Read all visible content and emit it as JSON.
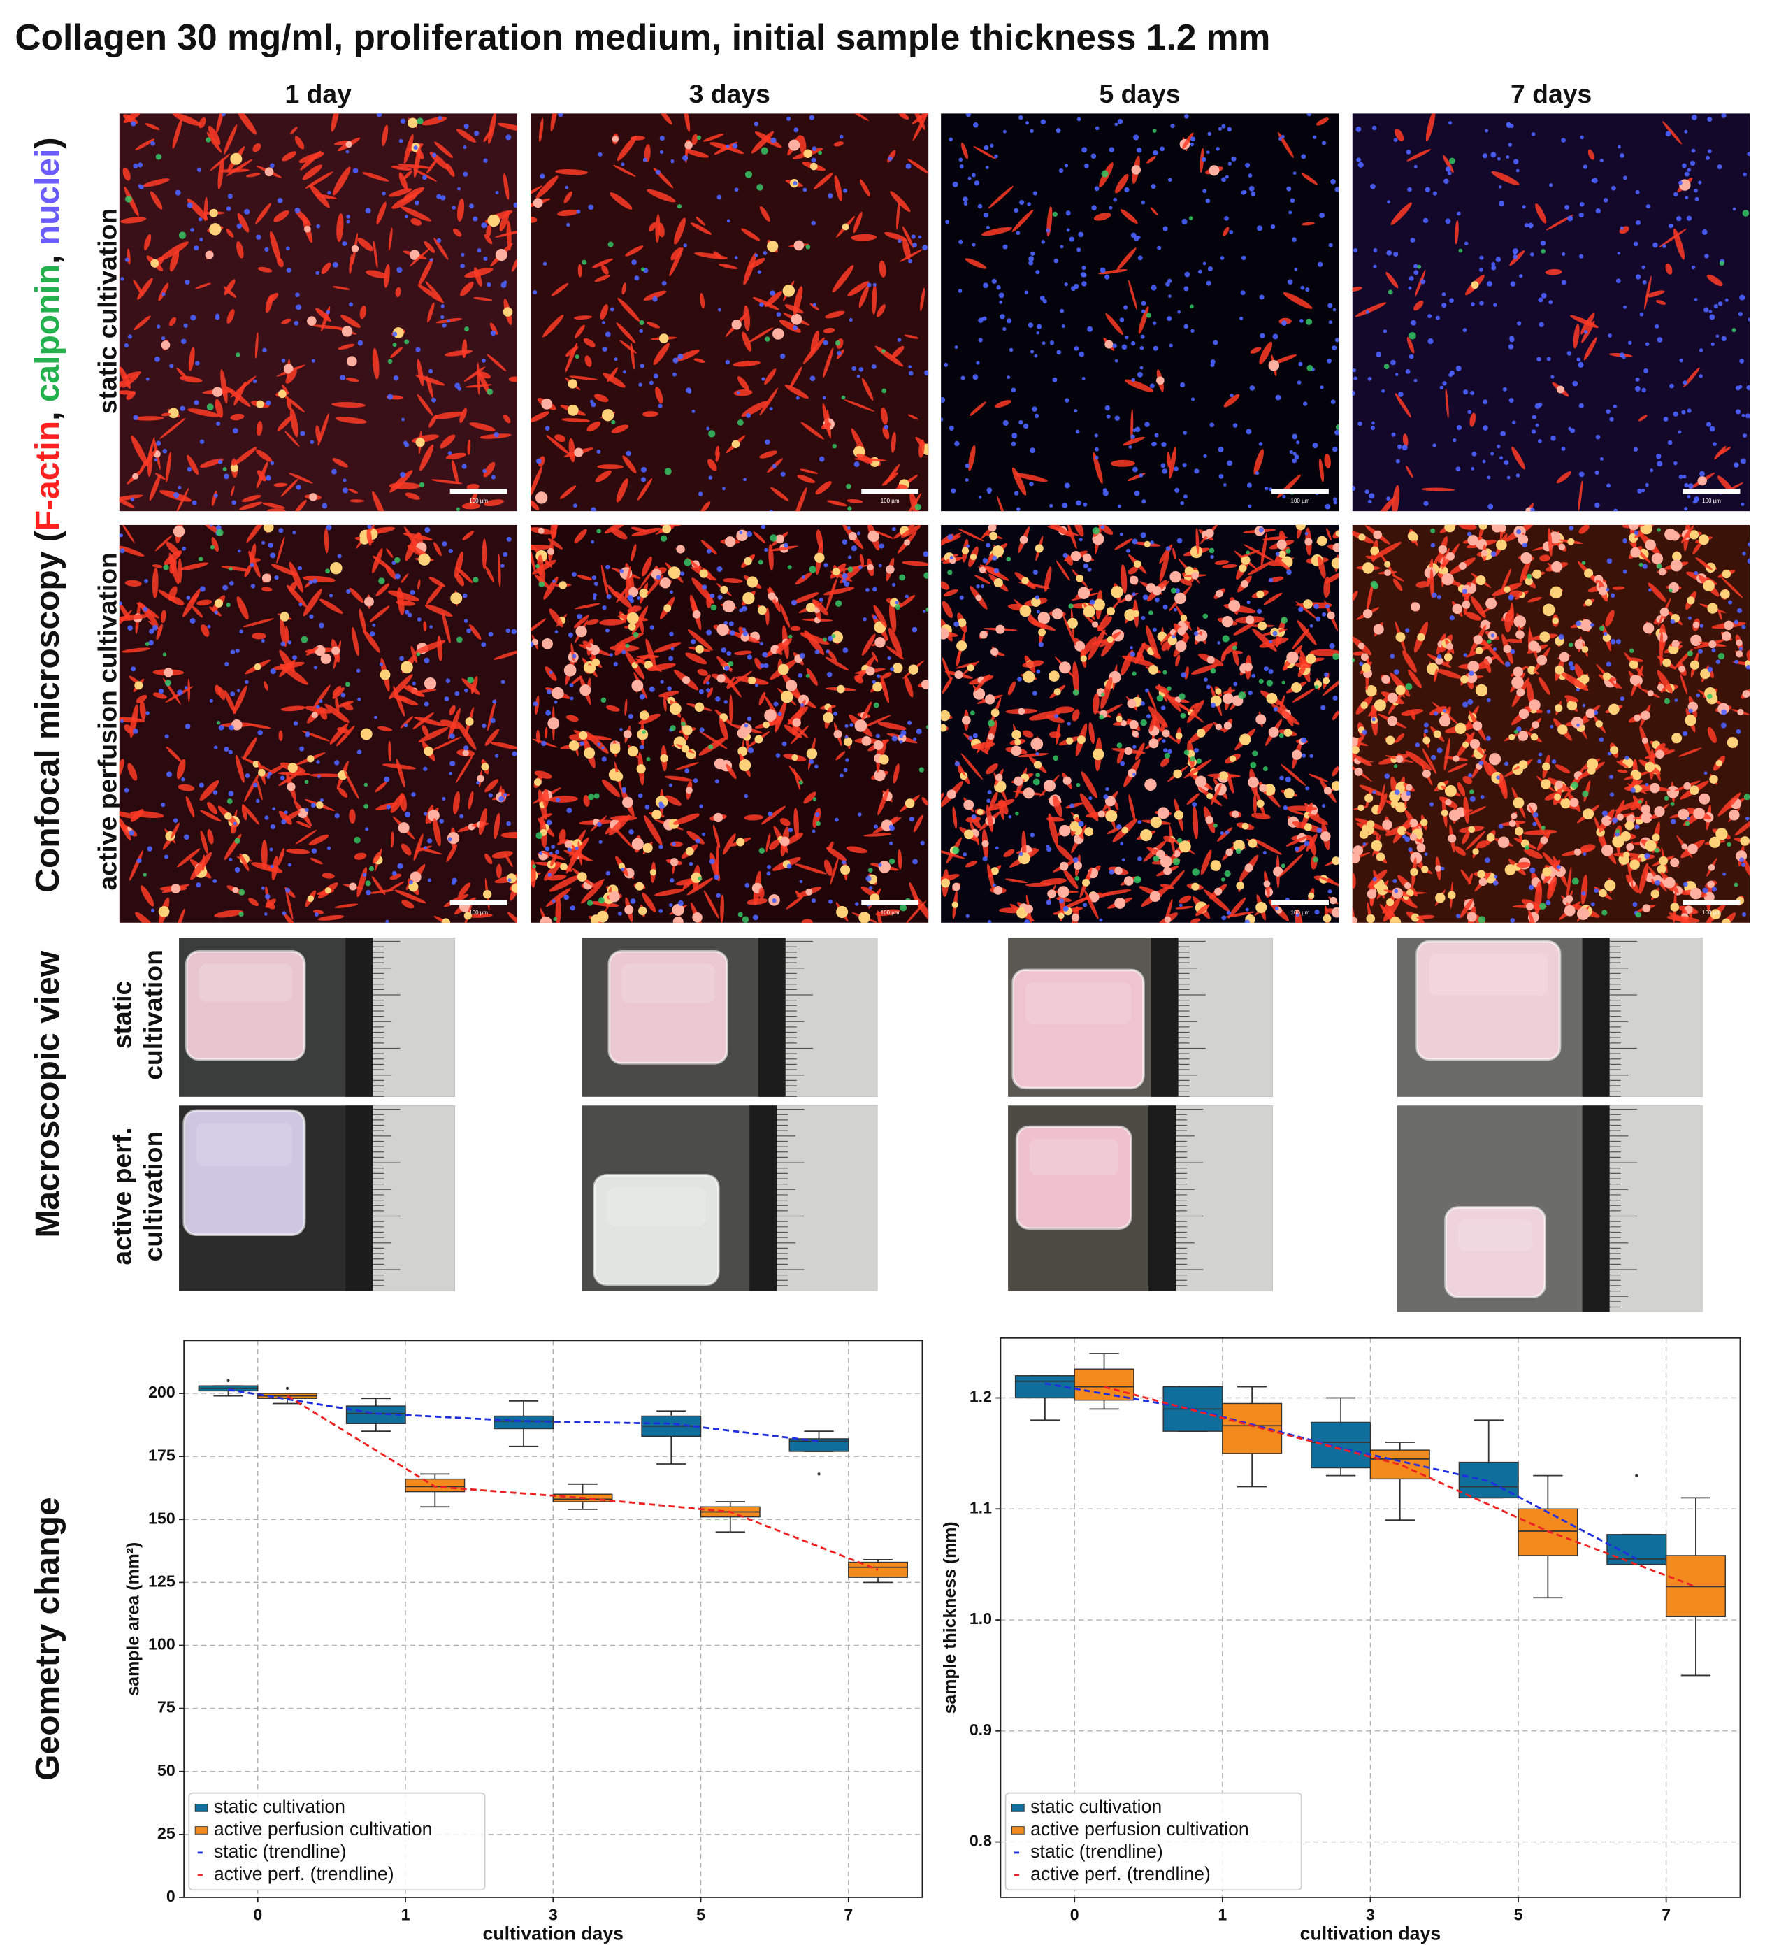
{
  "figure": {
    "title": "Collagen 30 mg/ml, proliferation medium, initial sample thickness 1.2 mm",
    "columns": [
      "1 day",
      "3 days",
      "5 days",
      "7 days"
    ],
    "confocal_label": {
      "text": "Confocal microscopy (",
      "stains": [
        {
          "name": "F-actin",
          "color": "#ff2020"
        },
        {
          "name": "calponin",
          "color": "#22b14c"
        },
        {
          "name": "nuclei",
          "color": "#6a5cff"
        }
      ],
      "separator": ", ",
      "close": ")"
    },
    "confocal_rows": [
      "static cultivation",
      "active perfusion cultivation"
    ],
    "scale_bar": "100 µm",
    "macro_label": "Macroscopic view",
    "macro_rows": [
      [
        "static",
        "cultivation"
      ],
      [
        "active perf.",
        "cultivation"
      ]
    ],
    "geometry_label": "Geometry change"
  },
  "chart_data": [
    {
      "type": "box",
      "y_label": "sample area (mm²)",
      "x_label": "cultivation days",
      "categories": [
        "0",
        "1",
        "3",
        "5",
        "7"
      ],
      "ylim": [
        0,
        221
      ],
      "yticks": [
        0,
        25,
        50,
        75,
        100,
        125,
        150,
        175,
        200
      ],
      "grid": true,
      "legend": "lower left",
      "series": [
        {
          "name": "static cultivation",
          "color": "#0f6e9c",
          "whisker_low": [
            199,
            185,
            179,
            172,
            177
          ],
          "q1": [
            201,
            188,
            186,
            183,
            177
          ],
          "median": [
            202,
            192,
            189,
            187,
            181
          ],
          "q3": [
            203,
            195,
            191,
            191,
            182
          ],
          "whisker_high": [
            203,
            198,
            197,
            193,
            185
          ],
          "outliers": [
            [
              205
            ],
            [],
            [],
            [],
            [
              168
            ]
          ]
        },
        {
          "name": "active perfusion cultivation",
          "color": "#f28a1e",
          "whisker_low": [
            196,
            155,
            154,
            145,
            125
          ],
          "q1": [
            198,
            161,
            157,
            151,
            127
          ],
          "median": [
            199,
            163,
            158,
            153,
            131
          ],
          "q3": [
            200,
            166,
            160,
            155,
            133
          ],
          "whisker_high": [
            200,
            168,
            164,
            157,
            134
          ],
          "outliers": [
            [
              202
            ],
            [],
            [],
            [],
            []
          ]
        },
        {
          "name": "static (trendline)",
          "color": "#1f2fe0",
          "dashed": true,
          "values": [
            201.5,
            192,
            189,
            188,
            181
          ]
        },
        {
          "name": "active perf. (trendline)",
          "color": "#ee2222",
          "dashed": true,
          "values": [
            199,
            163,
            158.5,
            153,
            130
          ]
        }
      ]
    },
    {
      "type": "box",
      "y_label": "sample thickness (mm)",
      "x_label": "cultivation days",
      "categories": [
        "0",
        "1",
        "3",
        "5",
        "7"
      ],
      "ylim": [
        0.75,
        1.254
      ],
      "yticks": [
        0.8,
        0.9,
        {
          "value": 1,
          "label": "1.0"
        },
        1.1,
        1.2
      ],
      "grid": true,
      "legend": "lower left",
      "series": [
        {
          "name": "static cultivation",
          "color": "#0f6e9c",
          "whisker_low": [
            1.18,
            1.17,
            1.13,
            1.11,
            1.05
          ],
          "q1": [
            1.2,
            1.17,
            1.137,
            1.11,
            1.05
          ],
          "median": [
            1.215,
            1.19,
            1.16,
            1.12,
            1.055
          ],
          "q3": [
            1.22,
            1.21,
            1.178,
            1.142,
            1.077
          ],
          "whisker_high": [
            1.22,
            1.21,
            1.2,
            1.18,
            1.077
          ],
          "outliers": [
            [],
            [],
            [],
            [],
            [
              1.13
            ]
          ]
        },
        {
          "name": "active perfusion cultivation",
          "color": "#f28a1e",
          "whisker_low": [
            1.19,
            1.12,
            1.09,
            1.02,
            0.95
          ],
          "q1": [
            1.198,
            1.15,
            1.127,
            1.058,
            1.003
          ],
          "median": [
            1.21,
            1.175,
            1.145,
            1.08,
            1.03
          ],
          "q3": [
            1.226,
            1.195,
            1.153,
            1.1,
            1.058
          ],
          "whisker_high": [
            1.24,
            1.21,
            1.16,
            1.13,
            1.11
          ],
          "outliers": [
            [],
            [],
            [],
            [],
            []
          ]
        },
        {
          "name": "static (trendline)",
          "color": "#1f2fe0",
          "dashed": true,
          "values": [
            1.213,
            1.19,
            1.155,
            1.125,
            1.055
          ]
        },
        {
          "name": "active perf. (trendline)",
          "color": "#ee2222",
          "dashed": true,
          "values": [
            1.21,
            1.175,
            1.14,
            1.08,
            1.03
          ]
        }
      ]
    }
  ]
}
